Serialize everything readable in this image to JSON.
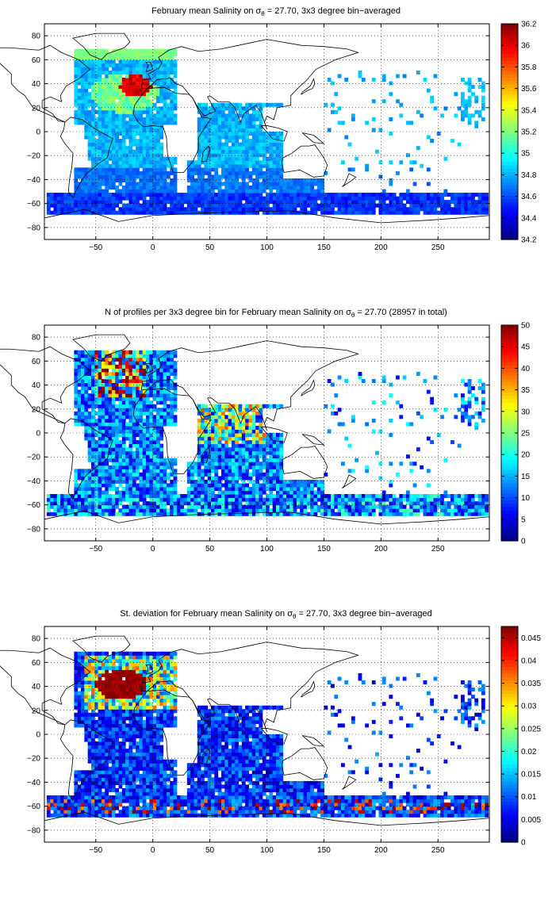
{
  "chart_data": [
    {
      "type": "heatmap",
      "title_prefix": "February ",
      "title_mean": "mean",
      "title_mid": " Salinity on σ",
      "title_sub": "θ",
      "title_suffix": " = 27.70, 3x3 degree bin−averaged",
      "x_ticks": [
        "−50",
        "0",
        "50",
        "100",
        "150",
        "200",
        "250"
      ],
      "x_tick_values": [
        -50,
        0,
        50,
        100,
        150,
        200,
        250
      ],
      "y_ticks": [
        "80",
        "60",
        "40",
        "20",
        "0",
        "−20",
        "−40",
        "−60",
        "−80"
      ],
      "y_tick_values": [
        80,
        60,
        40,
        20,
        0,
        -20,
        -40,
        -60,
        -80
      ],
      "xlim": [
        -95,
        295
      ],
      "ylim": [
        -90,
        90
      ],
      "grid": true,
      "colorbar_ticks": [
        "36.2",
        "36",
        "35.8",
        "35.6",
        "35.4",
        "35.2",
        "35",
        "34.8",
        "34.6",
        "34.4",
        "34.2"
      ],
      "colorbar_values": [
        36.2,
        36,
        35.8,
        35.6,
        35.4,
        35.2,
        35,
        34.8,
        34.6,
        34.4,
        34.2
      ],
      "clim": [
        34.2,
        36.2
      ],
      "colormap": "jet"
    },
    {
      "type": "heatmap",
      "title_prefix": "N of profiles per 3x3 degree bin for February ",
      "title_mean": "mean",
      "title_mid": " Salinity on σ",
      "title_sub": "θ",
      "title_suffix": " = 27.70 (28957 in total)",
      "total_profiles": 28957,
      "x_ticks": [
        "−50",
        "0",
        "50",
        "100",
        "150",
        "200",
        "250"
      ],
      "x_tick_values": [
        -50,
        0,
        50,
        100,
        150,
        200,
        250
      ],
      "y_ticks": [
        "80",
        "60",
        "40",
        "20",
        "0",
        "−20",
        "−40",
        "−60",
        "−80"
      ],
      "y_tick_values": [
        80,
        60,
        40,
        20,
        0,
        -20,
        -40,
        -60,
        -80
      ],
      "xlim": [
        -95,
        295
      ],
      "ylim": [
        -90,
        90
      ],
      "grid": true,
      "colorbar_ticks": [
        "50",
        "45",
        "40",
        "35",
        "30",
        "25",
        "20",
        "15",
        "10",
        "5",
        "0"
      ],
      "colorbar_values": [
        50,
        45,
        40,
        35,
        30,
        25,
        20,
        15,
        10,
        5,
        0
      ],
      "clim": [
        0,
        50
      ],
      "colormap": "jet"
    },
    {
      "type": "heatmap",
      "title_prefix": "St. deviation for February ",
      "title_mean": "mean",
      "title_mid": " Salinity on σ",
      "title_sub": "θ",
      "title_suffix": " = 27.70, 3x3 degree bin−averaged",
      "x_ticks": [
        "−50",
        "0",
        "50",
        "100",
        "150",
        "200",
        "250"
      ],
      "x_tick_values": [
        -50,
        0,
        50,
        100,
        150,
        200,
        250
      ],
      "y_ticks": [
        "80",
        "60",
        "40",
        "20",
        "0",
        "−20",
        "−40",
        "−60",
        "−80"
      ],
      "y_tick_values": [
        80,
        60,
        40,
        20,
        0,
        -20,
        -40,
        -60,
        -80
      ],
      "xlim": [
        -95,
        295
      ],
      "ylim": [
        -90,
        90
      ],
      "grid": true,
      "colorbar_ticks": [
        "0.045",
        "0.04",
        "0.035",
        "0.03",
        "0.025",
        "0.02",
        "0.015",
        "0.01",
        "0.005",
        "0"
      ],
      "colorbar_values": [
        0.045,
        0.04,
        0.035,
        0.03,
        0.025,
        0.02,
        0.015,
        0.01,
        0.005,
        0
      ],
      "clim": [
        0,
        0.0475
      ],
      "colormap": "jet"
    }
  ]
}
